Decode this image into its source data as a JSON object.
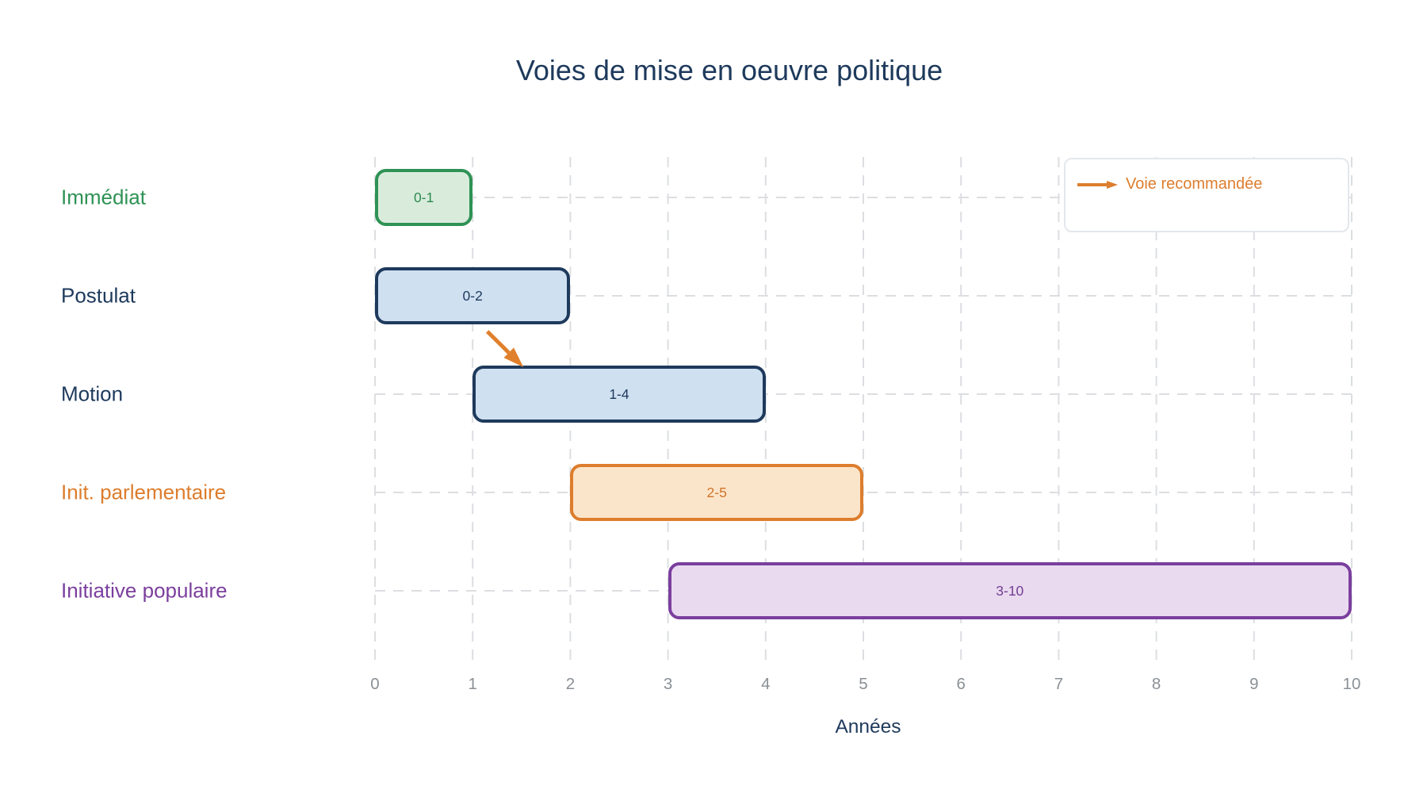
{
  "chart_data": {
    "type": "bar",
    "subtype": "horizontal-range-gantt",
    "title": "Voies de mise en oeuvre politique",
    "xlabel": "Années",
    "xlim": [
      0,
      10
    ],
    "x_ticks": [
      0,
      1,
      2,
      3,
      4,
      5,
      6,
      7,
      8,
      9,
      10
    ],
    "grid": {
      "vertical": true,
      "horizontal": true,
      "style": "dashed",
      "legend_position": "top-right"
    },
    "categories": [
      "Immédiat",
      "Postulat",
      "Motion",
      "Init. parlementaire",
      "Initiative populaire"
    ],
    "bars": [
      {
        "category": "Immédiat",
        "start": 0,
        "end": 1,
        "label": "0-1",
        "palette": "green"
      },
      {
        "category": "Postulat",
        "start": 0,
        "end": 2,
        "label": "0-2",
        "palette": "blue"
      },
      {
        "category": "Motion",
        "start": 1,
        "end": 4,
        "label": "1-4",
        "palette": "blue"
      },
      {
        "category": "Init. parlementaire",
        "start": 2,
        "end": 5,
        "label": "2-5",
        "palette": "orange"
      },
      {
        "category": "Initiative populaire",
        "start": 3,
        "end": 10,
        "label": "3-10",
        "palette": "purple"
      }
    ],
    "palettes": {
      "green": {
        "fill": "#d9ecdc",
        "stroke": "#2e9254",
        "text": "#2e8a50"
      },
      "blue": {
        "fill": "#cfe0f1",
        "stroke": "#1e3a5c",
        "text": "#1e3a5c"
      },
      "orange": {
        "fill": "#fbe5ca",
        "stroke": "#dd7d2d",
        "text": "#d1742a"
      },
      "purple": {
        "fill": "#e9daf0",
        "stroke": "#7b3f9e",
        "text": "#733d92"
      }
    },
    "category_colors": {
      "Immédiat": "#2e9254",
      "Postulat": "#1e3a5c",
      "Motion": "#1e3a5c",
      "Init. parlementaire": "#dd7d2d",
      "Initiative populaire": "#7b3f9e"
    },
    "annotations": [
      {
        "type": "arrow",
        "meaning": "recommended transition",
        "from_category": "Postulat",
        "from_x": 1.15,
        "to_category": "Motion",
        "to_x": 1.52,
        "color": "#e0802d"
      }
    ],
    "legend": {
      "label": "Voie recommandée",
      "symbol": "arrow",
      "color": "#dd7d2d"
    }
  },
  "colors": {
    "title": "#1e3a5c",
    "axis_title": "#1e3a5c",
    "tick_labels": "#8a9096",
    "grid": "#dcdee1",
    "legend_border": "#e4e7ec",
    "background": "#ffffff"
  }
}
